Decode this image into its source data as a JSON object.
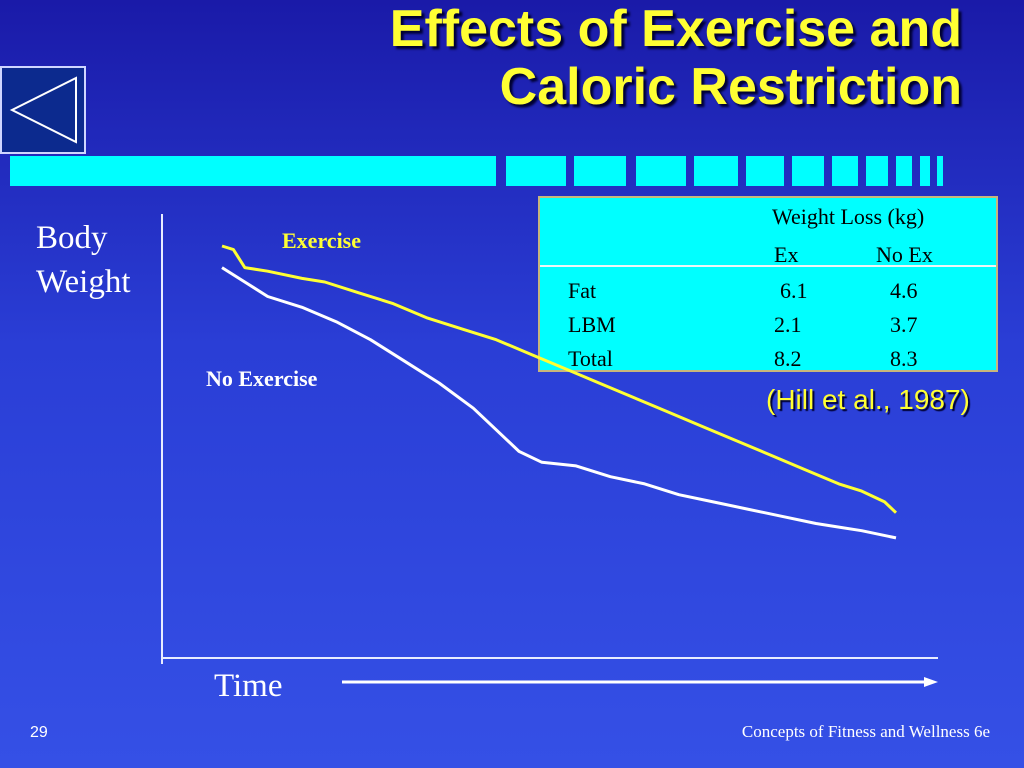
{
  "slide": {
    "title_line1": "Effects of Exercise and",
    "title_line2": "Caloric Restriction",
    "citation": "(Hill et al., 1987)",
    "page_number": "29",
    "footer": "Concepts of Fitness and Wellness 6e"
  },
  "table": {
    "heading": "Weight Loss (kg)",
    "col_ex": "Ex",
    "col_noex": "No Ex",
    "rows": [
      {
        "label": "Fat",
        "ex": "6.1",
        "noex": "4.6"
      },
      {
        "label": "LBM",
        "ex": "2.1",
        "noex": "3.7"
      },
      {
        "label": "Total",
        "ex": "8.2",
        "noex": "8.3"
      }
    ]
  },
  "chart_data": {
    "type": "line",
    "xlabel": "Time",
    "ylabel_line1": "Body",
    "ylabel_line2": "Weight",
    "axis_ticks": false,
    "grid": false,
    "series": [
      {
        "name": "Exercise",
        "color": "#ffff33",
        "points": [
          [
            0,
            96
          ],
          [
            2,
            95
          ],
          [
            4,
            90
          ],
          [
            8,
            89
          ],
          [
            14,
            87
          ],
          [
            18,
            86
          ],
          [
            24,
            83
          ],
          [
            30,
            80
          ],
          [
            36,
            76
          ],
          [
            42,
            73
          ],
          [
            48,
            70
          ],
          [
            54,
            66
          ],
          [
            60,
            62
          ],
          [
            66,
            58
          ],
          [
            72,
            54
          ],
          [
            78,
            50
          ],
          [
            84,
            46
          ],
          [
            90,
            42
          ],
          [
            96,
            38
          ],
          [
            102,
            34
          ],
          [
            108,
            30
          ],
          [
            112,
            28
          ],
          [
            116,
            25
          ],
          [
            118,
            22
          ]
        ]
      },
      {
        "name": "No Exercise",
        "color": "#ffffff",
        "points": [
          [
            0,
            90
          ],
          [
            4,
            86
          ],
          [
            8,
            82
          ],
          [
            14,
            79
          ],
          [
            20,
            75
          ],
          [
            26,
            70
          ],
          [
            32,
            64
          ],
          [
            38,
            58
          ],
          [
            44,
            51
          ],
          [
            48,
            45
          ],
          [
            52,
            39
          ],
          [
            56,
            36
          ],
          [
            62,
            35
          ],
          [
            68,
            32
          ],
          [
            74,
            30
          ],
          [
            80,
            27
          ],
          [
            86,
            25
          ],
          [
            92,
            23
          ],
          [
            98,
            21
          ],
          [
            104,
            19
          ],
          [
            108,
            18
          ],
          [
            112,
            17
          ],
          [
            118,
            15
          ]
        ]
      }
    ]
  }
}
